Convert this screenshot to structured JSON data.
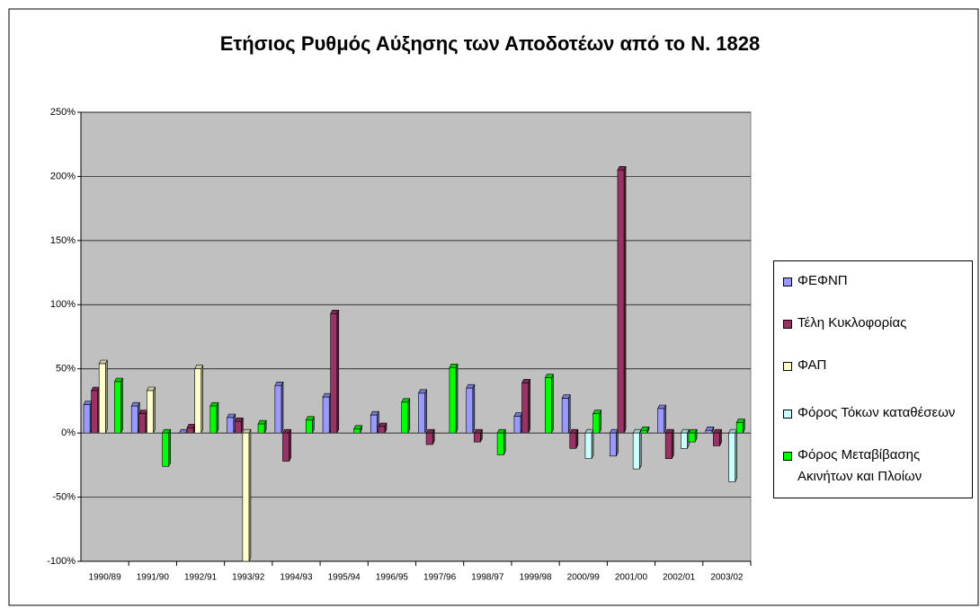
{
  "chart_data": {
    "type": "bar",
    "title": "Ετήσιος Ρυθμός Αύξησης των Αποδοτέων από το Ν. 1828",
    "categories": [
      "1990/89",
      "1991/90",
      "1992/91",
      "1993/92",
      "1994/93",
      "1995/94",
      "1996/95",
      "1997/96",
      "1998/97",
      "1999/98",
      "2000/99",
      "2001/00",
      "2002/01",
      "2003/02"
    ],
    "series": [
      {
        "name": "ΦΕΦΝΠ",
        "color": "#9999ff",
        "values": [
          22,
          21,
          0,
          12,
          37,
          28,
          14,
          31,
          35,
          13,
          27,
          -18,
          19,
          2
        ]
      },
      {
        "name": "Τέλη Κυκλοφορίας",
        "color": "#993366",
        "values": [
          33,
          15,
          4,
          9,
          -22,
          93,
          5,
          -9,
          -7,
          39,
          -12,
          205,
          -20,
          -10
        ]
      },
      {
        "name": "ΦΑΠ",
        "color": "#ffffcc",
        "values": [
          54,
          33,
          50,
          -100,
          null,
          null,
          null,
          null,
          null,
          null,
          null,
          null,
          null,
          null
        ]
      },
      {
        "name": "Φόρος Τόκων καταθέσεων",
        "color": "#ccffff",
        "values": [
          null,
          null,
          null,
          null,
          null,
          null,
          null,
          null,
          null,
          null,
          -20,
          -28,
          -12,
          -38
        ]
      },
      {
        "name": "Φόρος Μεταβίβασης Ακινήτων και Πλοίων",
        "color": "#00ff00",
        "values": [
          40,
          -26,
          21,
          7,
          10,
          3,
          24,
          51,
          -17,
          43,
          15,
          2,
          -7,
          8
        ]
      }
    ],
    "ylim": [
      -100,
      250
    ],
    "yticks": [
      {
        "value": -100,
        "label": "-100%"
      },
      {
        "value": -50,
        "label": "-50%"
      },
      {
        "value": 0,
        "label": "0%"
      },
      {
        "value": 50,
        "label": "50%"
      },
      {
        "value": 100,
        "label": "100%"
      },
      {
        "value": 150,
        "label": "150%"
      },
      {
        "value": 200,
        "label": "200%"
      },
      {
        "value": 250,
        "label": "250%"
      }
    ],
    "grid": true,
    "legend": "right"
  }
}
